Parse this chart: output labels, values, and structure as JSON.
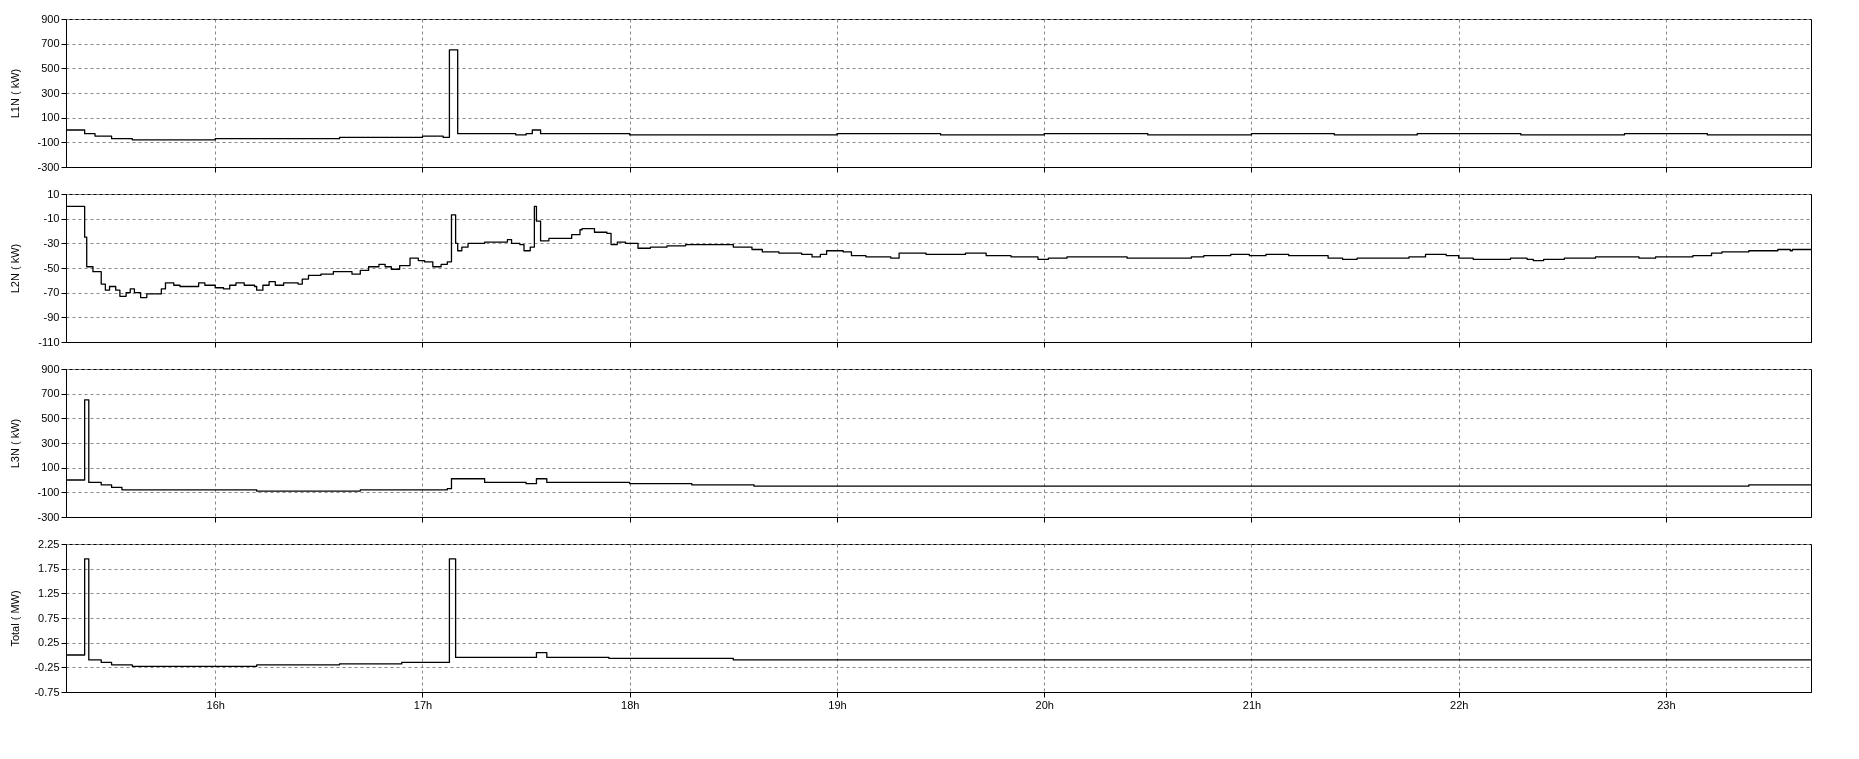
{
  "chart_data": [
    {
      "type": "step",
      "ylabel": "L1N ( kW)",
      "color": "#000000",
      "grid": true,
      "tick_labels": "y",
      "xlim": [
        15.28,
        23.7
      ],
      "xticks": [
        {
          "value": 16,
          "label": null
        },
        {
          "value": 17,
          "label": null
        },
        {
          "value": 18,
          "label": null
        },
        {
          "value": 19,
          "label": null
        },
        {
          "value": 20,
          "label": null
        },
        {
          "value": 21,
          "label": null
        },
        {
          "value": 22,
          "label": null
        },
        {
          "value": 23,
          "label": null
        }
      ],
      "ylim": [
        -300,
        900
      ],
      "yticks": [
        -300,
        -100,
        100,
        300,
        500,
        700,
        900
      ],
      "x": [
        15.28,
        15.37,
        15.42,
        15.5,
        15.6,
        16.0,
        16.6,
        16.85,
        17.0,
        17.1,
        17.13,
        17.17,
        17.45,
        17.5,
        17.53,
        17.57,
        18.0,
        18.5,
        19.0,
        19.5,
        20.0,
        20.5,
        21.0,
        21.4,
        21.8,
        22.3,
        22.8,
        23.2,
        23.7
      ],
      "values": [
        0,
        -30,
        -50,
        -70,
        -80,
        -70,
        -60,
        -60,
        -50,
        -60,
        650,
        -30,
        -40,
        -30,
        0,
        -30,
        -40,
        -40,
        -30,
        -40,
        -30,
        -40,
        -30,
        -40,
        -30,
        -40,
        -30,
        -40,
        -40
      ]
    },
    {
      "type": "step",
      "ylabel": "L2N ( kW)",
      "color": "#000000",
      "grid": true,
      "tick_labels": "y",
      "xlim": [
        15.28,
        23.7
      ],
      "xticks": [
        {
          "value": 16,
          "label": null
        },
        {
          "value": 17,
          "label": null
        },
        {
          "value": 18,
          "label": null
        },
        {
          "value": 19,
          "label": null
        },
        {
          "value": 20,
          "label": null
        },
        {
          "value": 21,
          "label": null
        },
        {
          "value": 22,
          "label": null
        },
        {
          "value": 23,
          "label": null
        }
      ],
      "ylim": [
        -110,
        10
      ],
      "yticks": [
        -110,
        -90,
        -70,
        -50,
        -30,
        -10,
        10
      ],
      "x": [
        15.28,
        15.37,
        15.38,
        15.41,
        15.45,
        15.47,
        15.49,
        15.52,
        15.54,
        15.57,
        15.59,
        15.61,
        15.64,
        15.67,
        15.74,
        15.76,
        15.8,
        15.83,
        15.92,
        15.95,
        16.0,
        16.04,
        16.07,
        16.1,
        16.14,
        16.19,
        16.2,
        16.23,
        16.26,
        16.29,
        16.33,
        16.4,
        16.42,
        16.45,
        16.51,
        16.57,
        16.66,
        16.7,
        16.74,
        16.79,
        16.82,
        16.85,
        16.89,
        16.94,
        16.98,
        17.01,
        17.05,
        17.09,
        17.12,
        17.14,
        17.16,
        17.17,
        17.19,
        17.22,
        17.3,
        17.41,
        17.43,
        17.47,
        17.49,
        17.52,
        17.54,
        17.55,
        17.57,
        17.61,
        17.67,
        17.72,
        17.76,
        17.77,
        17.83,
        17.89,
        17.91,
        17.94,
        17.98,
        18.04,
        18.1,
        18.18,
        18.27,
        18.5,
        18.59,
        18.64,
        18.72,
        18.83,
        18.88,
        18.92,
        18.95,
        19.03,
        19.07,
        19.14,
        19.26,
        19.3,
        19.43,
        19.62,
        19.72,
        19.84,
        19.97,
        20.02,
        20.11,
        20.4,
        20.71,
        20.77,
        20.9,
        20.99,
        21.07,
        21.18,
        21.37,
        21.44,
        21.51,
        21.76,
        21.84,
        21.94,
        22.0,
        22.07,
        22.25,
        22.33,
        22.36,
        22.41,
        22.51,
        22.66,
        22.87,
        22.95,
        23.13,
        23.22,
        23.27,
        23.4,
        23.54,
        23.6,
        23.61,
        23.7
      ],
      "values": [
        0,
        -25,
        -49,
        -53,
        -63,
        -68,
        -65,
        -68,
        -73,
        -70,
        -67,
        -70,
        -74,
        -71,
        -67,
        -62,
        -64,
        -65,
        -62,
        -64,
        -66,
        -67,
        -64,
        -62,
        -64,
        -65,
        -68,
        -64,
        -61,
        -64,
        -62,
        -63,
        -59,
        -56,
        -55,
        -53,
        -55,
        -52,
        -49,
        -47,
        -49,
        -51,
        -48,
        -42,
        -44,
        -45,
        -49,
        -47,
        -45,
        -7,
        -30,
        -36,
        -33,
        -30,
        -29,
        -27,
        -30,
        -31,
        -36,
        -33,
        0,
        -12,
        -28,
        -26,
        -26,
        -23,
        -19,
        -18,
        -21,
        -22,
        -31,
        -29,
        -30,
        -34,
        -33,
        -32,
        -31,
        -33,
        -35,
        -37,
        -38,
        -39,
        -41,
        -39,
        -36,
        -37,
        -40,
        -41,
        -42,
        -38,
        -39,
        -38,
        -40,
        -41,
        -43,
        -42,
        -41,
        -42,
        -41,
        -40,
        -39,
        -40,
        -39,
        -40,
        -42,
        -43,
        -42,
        -41,
        -39,
        -40,
        -42,
        -43,
        -42,
        -43,
        -44,
        -43,
        -42,
        -41,
        -42,
        -41,
        -40,
        -38,
        -37,
        -36,
        -35,
        -36,
        -35,
        -35
      ]
    },
    {
      "type": "step",
      "ylabel": "L3N ( kW)",
      "color": "#000000",
      "grid": true,
      "tick_labels": "y",
      "xlim": [
        15.28,
        23.7
      ],
      "xticks": [
        {
          "value": 16,
          "label": null
        },
        {
          "value": 17,
          "label": null
        },
        {
          "value": 18,
          "label": null
        },
        {
          "value": 19,
          "label": null
        },
        {
          "value": 20,
          "label": null
        },
        {
          "value": 21,
          "label": null
        },
        {
          "value": 22,
          "label": null
        },
        {
          "value": 23,
          "label": null
        }
      ],
      "ylim": [
        -300,
        900
      ],
      "yticks": [
        -300,
        -100,
        100,
        300,
        500,
        700,
        900
      ],
      "x": [
        15.28,
        15.37,
        15.39,
        15.45,
        15.5,
        15.55,
        15.7,
        16.2,
        16.7,
        17.12,
        17.14,
        17.3,
        17.5,
        17.55,
        17.6,
        18.0,
        18.3,
        18.6,
        23.4,
        23.6,
        23.7
      ],
      "values": [
        0,
        650,
        -20,
        -40,
        -60,
        -80,
        -80,
        -90,
        -80,
        -70,
        10,
        -20,
        -30,
        10,
        -20,
        -30,
        -40,
        -50,
        -40,
        -40,
        -40
      ]
    },
    {
      "type": "step",
      "ylabel": "Total ( MW)",
      "color": "#000000",
      "grid": true,
      "xlim": [
        15.28,
        23.7
      ],
      "xticks": [
        {
          "value": 16,
          "label": "16h"
        },
        {
          "value": 17,
          "label": "17h"
        },
        {
          "value": 18,
          "label": "18h"
        },
        {
          "value": 19,
          "label": "19h"
        },
        {
          "value": 20,
          "label": "20h"
        },
        {
          "value": 21,
          "label": "21h"
        },
        {
          "value": 22,
          "label": "22h"
        },
        {
          "value": 23,
          "label": "23h"
        }
      ],
      "ylim": [
        -0.75,
        2.25
      ],
      "yticks": [
        -0.75,
        -0.25,
        0.25,
        0.75,
        1.25,
        1.75,
        2.25
      ],
      "x": [
        15.28,
        15.37,
        15.39,
        15.45,
        15.5,
        15.6,
        16.2,
        16.6,
        16.9,
        17.13,
        17.16,
        17.5,
        17.55,
        17.6,
        17.9,
        18.5,
        23.7
      ],
      "values": [
        0,
        1.95,
        -0.1,
        -0.15,
        -0.2,
        -0.23,
        -0.2,
        -0.18,
        -0.15,
        1.95,
        -0.05,
        -0.05,
        0.05,
        -0.05,
        -0.07,
        -0.1,
        -0.1
      ]
    }
  ]
}
